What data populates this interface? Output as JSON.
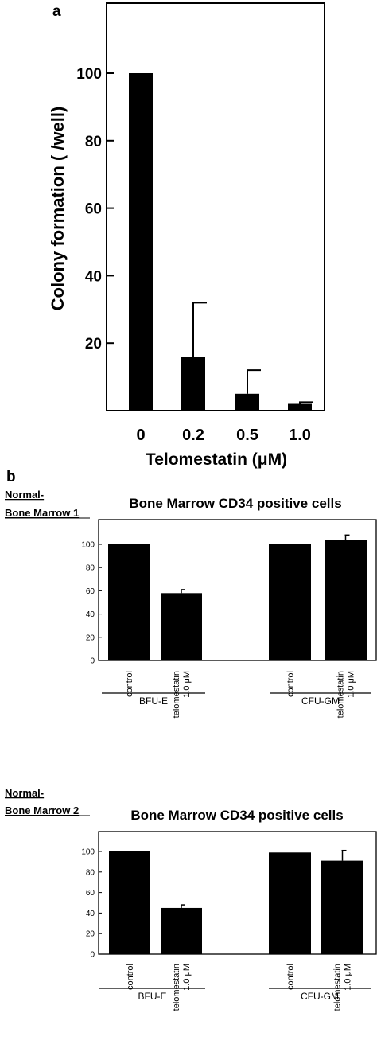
{
  "panels": {
    "a": {
      "label": "a",
      "chart_data": {
        "type": "bar",
        "categories": [
          "0",
          "0.2",
          "0.5",
          "1.0"
        ],
        "values": [
          100,
          16,
          5,
          2
        ],
        "error_upper": [
          100,
          32,
          12,
          2.5
        ],
        "xlabel": "Telomestatin (μM)",
        "ylabel": "Colony formation ( /well)",
        "yticks": [
          "20",
          "40",
          "60",
          "80",
          "100"
        ],
        "ylim": [
          0,
          120
        ],
        "grid": false,
        "bar_color": "#000000"
      }
    },
    "b": {
      "label": "b",
      "charts": [
        {
          "side_label_line1": "Normal-",
          "side_label_line2": "Bone Marrow 1",
          "chart_data": {
            "type": "bar",
            "title": "Bone Marrow CD34 positive cells",
            "categories": [
              "control",
              "telomestatin 1.0 μM",
              "control",
              "telomestatin 1.0 μM"
            ],
            "cat_line1": [
              "control",
              "telomestatin",
              "control",
              "telomestatin"
            ],
            "cat_line2": [
              "",
              "1.0 μM",
              "",
              "1.0 μM"
            ],
            "values": [
              100,
              58,
              100,
              104
            ],
            "error_upper": [
              100,
              61,
              100,
              108
            ],
            "groups": [
              "BFU-E",
              "CFU-GM"
            ],
            "yticks": [
              "0",
              "20",
              "40",
              "60",
              "80",
              "100"
            ],
            "ylim": [
              0,
              114
            ],
            "grid": false,
            "bar_color": "#000000"
          }
        },
        {
          "side_label_line1": "Normal-",
          "side_label_line2": "Bone Marrow 2",
          "chart_data": {
            "type": "bar",
            "title": "Bone Marrow CD34 positive cells",
            "categories": [
              "control",
              "telomestatin 1.0 μM",
              "control",
              "telomestatin 1.0 μM"
            ],
            "cat_line1": [
              "control",
              "telomestatin",
              "control",
              "telomestatin"
            ],
            "cat_line2": [
              "",
              "1.0 μM",
              "",
              "1.0 μM"
            ],
            "values": [
              100,
              45,
              99,
              91
            ],
            "error_upper": [
              100,
              48,
              99,
              101
            ],
            "groups": [
              "BFU-E",
              "CFU-GM"
            ],
            "yticks": [
              "0",
              "20",
              "40",
              "60",
              "80",
              "100"
            ],
            "ylim": [
              0,
              114
            ],
            "grid": false,
            "bar_color": "#000000"
          }
        }
      ]
    }
  }
}
